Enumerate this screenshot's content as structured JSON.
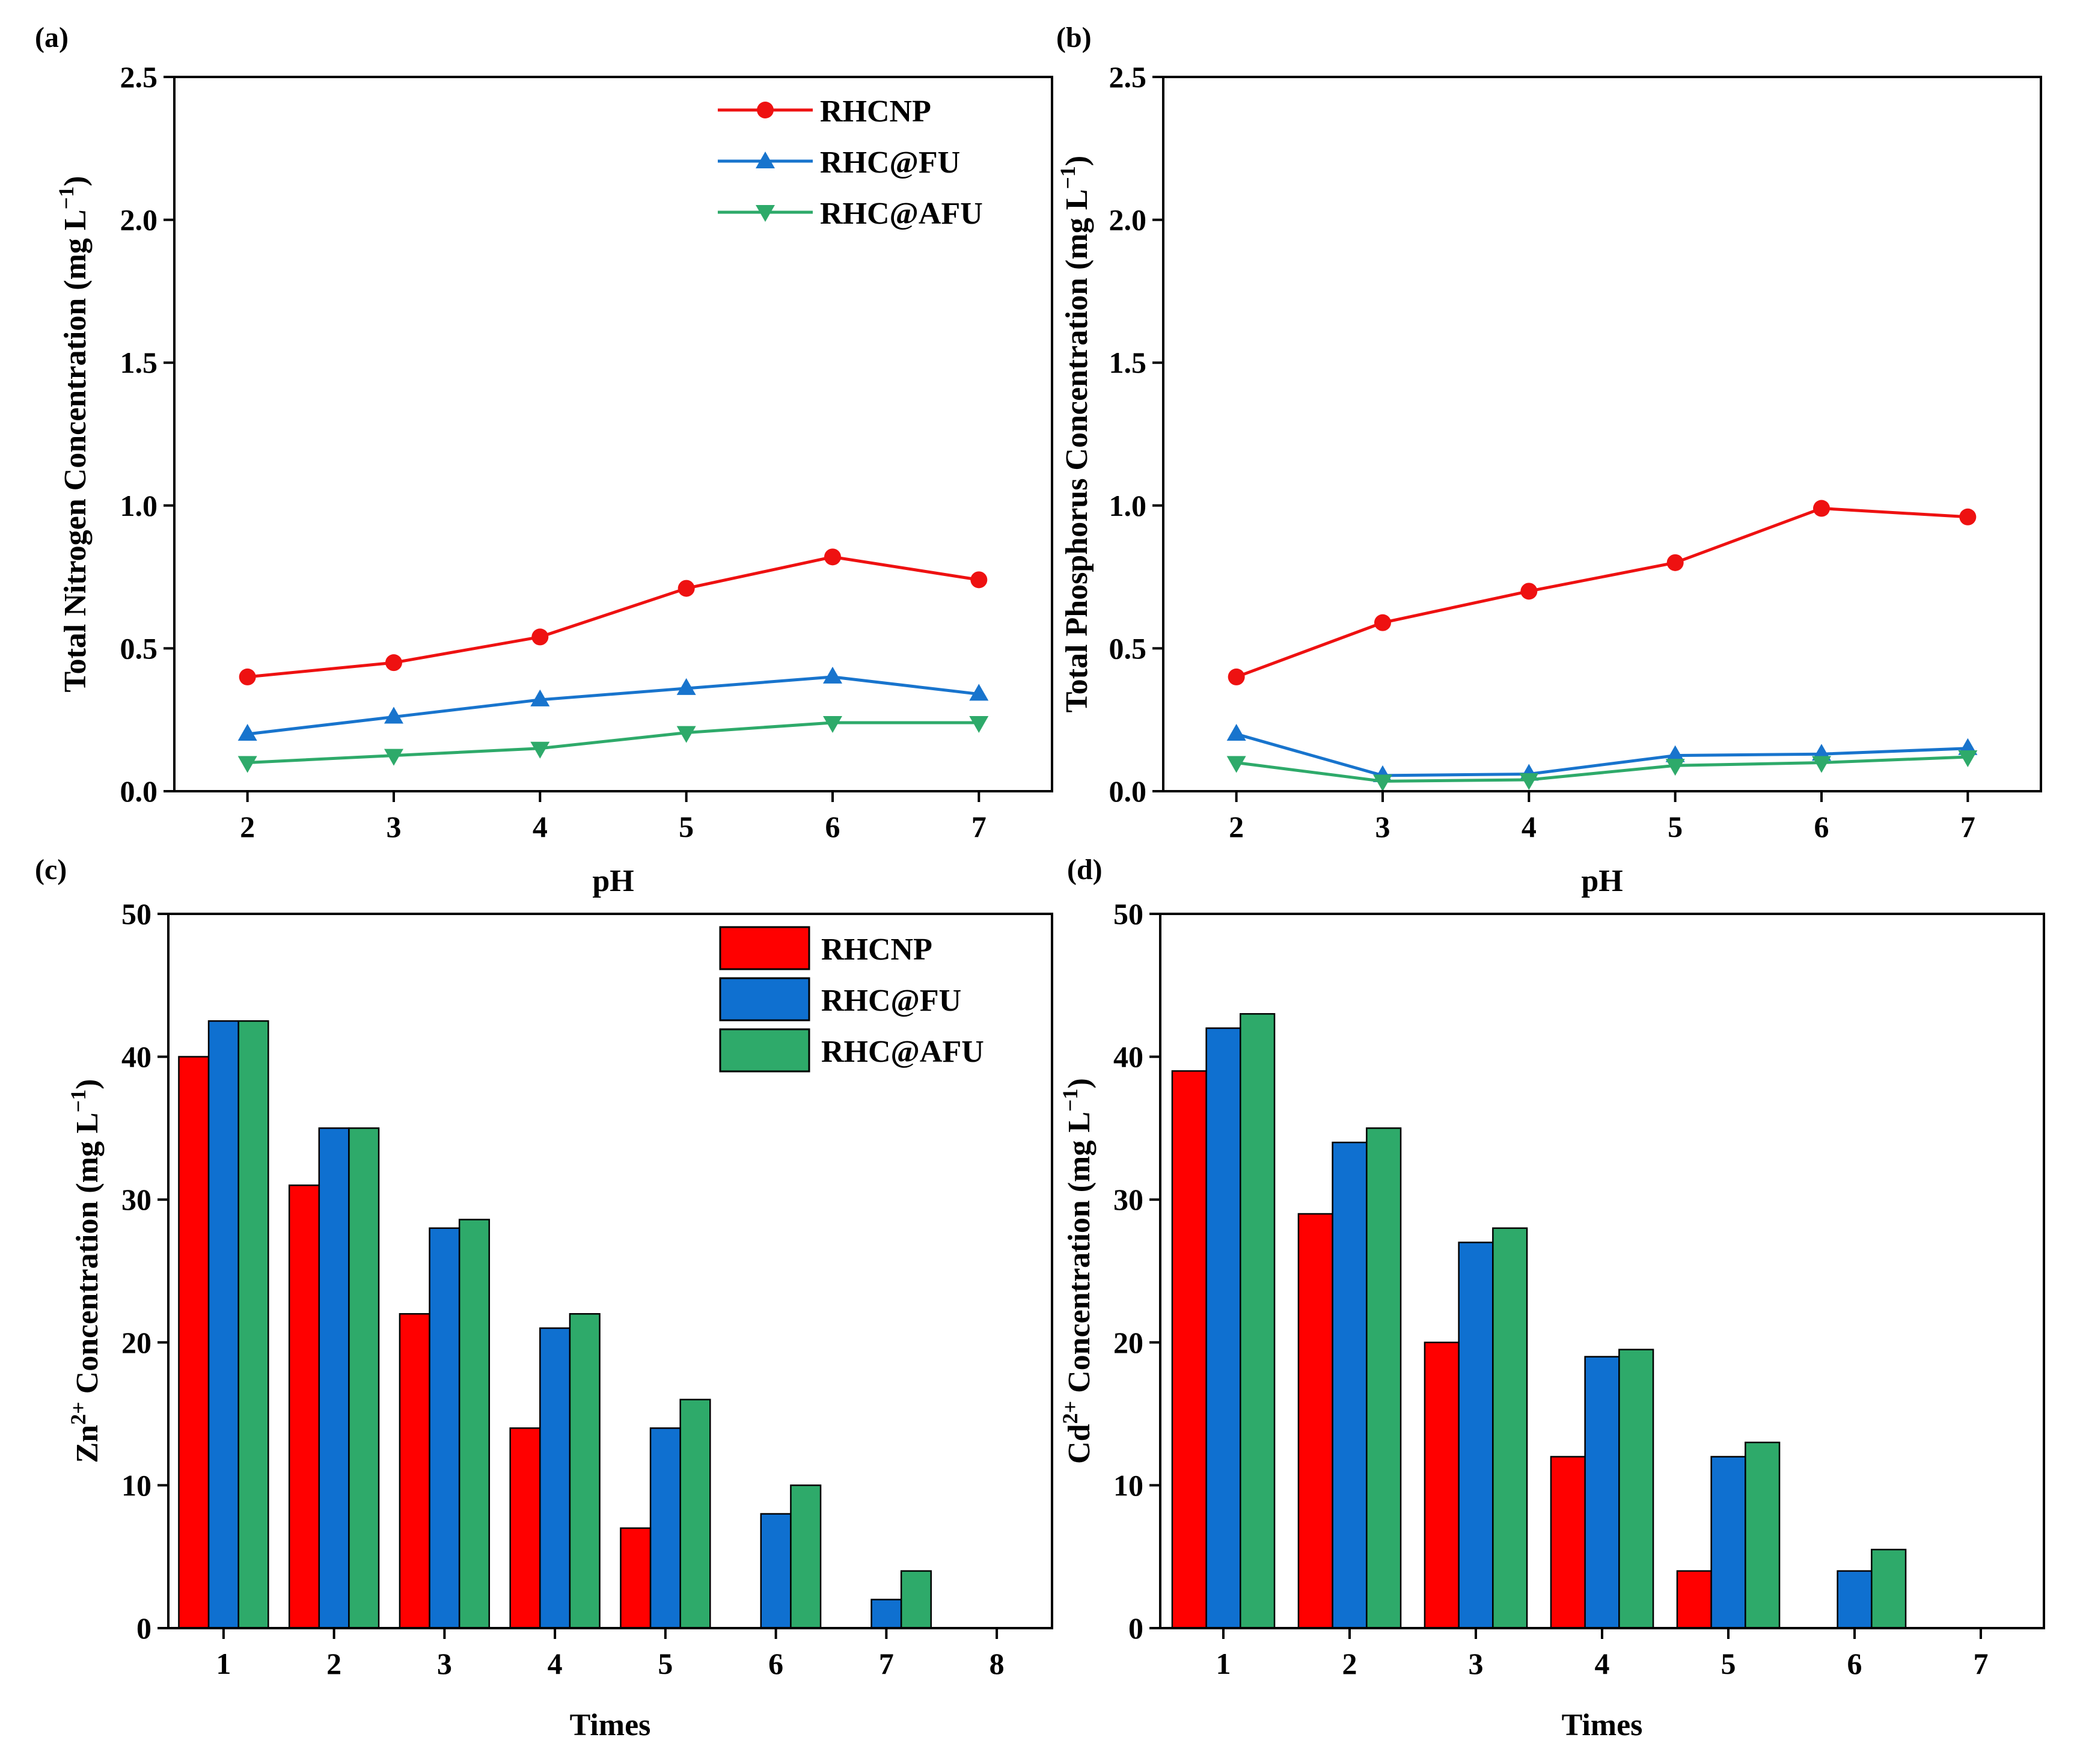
{
  "chart_data": [
    {
      "panel": "(a)",
      "type": "line",
      "xlabel": "pH",
      "ylabel": "Total Nitrogen Concentration (mg L⁻¹)",
      "ylabel_main": "Total Nitrogen Concentration (mg L",
      "ylabel_sup": "−1",
      "ylabel_close": ")",
      "x": [
        2,
        3,
        4,
        5,
        6,
        7
      ],
      "xlim": [
        1.5,
        7.5
      ],
      "ylim": [
        0,
        2.5
      ],
      "yticks": [
        0.0,
        0.5,
        1.0,
        1.5,
        2.0,
        2.5
      ],
      "ytick_labels": [
        "0.0",
        "0.5",
        "1.0",
        "1.5",
        "2.0",
        "2.5"
      ],
      "xtick_labels": [
        "2",
        "3",
        "4",
        "5",
        "6",
        "7"
      ],
      "legend": "top-right",
      "series": [
        {
          "name": "RHCNP",
          "color": "#ee1111",
          "marker": "circle",
          "values": [
            0.4,
            0.45,
            0.54,
            0.71,
            0.82,
            0.74
          ]
        },
        {
          "name": "RHC@FU",
          "color": "#1874cd",
          "marker": "triangle-up",
          "values": [
            0.2,
            0.26,
            0.32,
            0.36,
            0.4,
            0.34
          ]
        },
        {
          "name": "RHC@AFU",
          "color": "#2eaa6a",
          "marker": "triangle-down",
          "values": [
            0.1,
            0.125,
            0.15,
            0.205,
            0.24,
            0.24
          ]
        }
      ]
    },
    {
      "panel": "(b)",
      "type": "line",
      "xlabel": "pH",
      "ylabel": "Total  Phosphorus Concentration (mg L⁻¹)",
      "ylabel_main": "Total  Phosphorus Concentration (mg L",
      "ylabel_sup": "−1",
      "ylabel_close": ")",
      "x": [
        2,
        3,
        4,
        5,
        6,
        7
      ],
      "xlim": [
        1.5,
        7.5
      ],
      "ylim": [
        0,
        2.5
      ],
      "yticks": [
        0.0,
        0.5,
        1.0,
        1.5,
        2.0,
        2.5
      ],
      "ytick_labels": [
        "0.0",
        "0.5",
        "1.0",
        "1.5",
        "2.0",
        "2.5"
      ],
      "xtick_labels": [
        "2",
        "3",
        "4",
        "5",
        "6",
        "7"
      ],
      "series": [
        {
          "name": "RHCNP",
          "color": "#ee1111",
          "marker": "circle",
          "values": [
            0.4,
            0.59,
            0.7,
            0.8,
            0.99,
            0.96
          ]
        },
        {
          "name": "RHC@FU",
          "color": "#1874cd",
          "marker": "triangle-up",
          "values": [
            0.2,
            0.055,
            0.06,
            0.125,
            0.13,
            0.15
          ]
        },
        {
          "name": "RHC@AFU",
          "color": "#2eaa6a",
          "marker": "triangle-down",
          "values": [
            0.1,
            0.035,
            0.04,
            0.09,
            0.1,
            0.12
          ]
        }
      ]
    },
    {
      "panel": "(c)",
      "type": "bar",
      "xlabel": "Times",
      "ylabel": "Zn²⁺ Concentration (mg L⁻¹)",
      "ylabel_ion": "Zn",
      "ylabel_ion_sup": "2+",
      "ylabel_main": " Concentration (mg L",
      "ylabel_sup": "−1",
      "ylabel_close": ")",
      "categories": [
        "1",
        "2",
        "3",
        "4",
        "5",
        "6",
        "7",
        "8"
      ],
      "xlim": [
        0.5,
        8.5
      ],
      "ylim": [
        0,
        50
      ],
      "yticks": [
        0,
        10,
        20,
        30,
        40,
        50
      ],
      "ytick_labels": [
        "0",
        "10",
        "20",
        "30",
        "40",
        "50"
      ],
      "legend": "top-right",
      "series": [
        {
          "name": "RHCNP",
          "color": "#ff0000",
          "values": [
            40,
            31,
            22,
            14,
            7,
            0,
            0,
            0
          ]
        },
        {
          "name": "RHC@FU",
          "color": "#0f70d0",
          "values": [
            42.5,
            35,
            28,
            21,
            14,
            8,
            2,
            0
          ]
        },
        {
          "name": "RHC@AFU",
          "color": "#2eaa6a",
          "values": [
            42.5,
            35,
            28.6,
            22,
            16,
            10,
            4,
            0
          ]
        }
      ]
    },
    {
      "panel": "(d)",
      "type": "bar",
      "xlabel": "Times",
      "ylabel": "Cd²⁺ Concentration (mg L⁻¹)",
      "ylabel_ion": "Cd",
      "ylabel_ion_sup": "2+",
      "ylabel_main": " Concentration (mg L",
      "ylabel_sup": "−1",
      "ylabel_close": ")",
      "categories": [
        "1",
        "2",
        "3",
        "4",
        "5",
        "6",
        "7"
      ],
      "xlim": [
        0.5,
        7.5
      ],
      "ylim": [
        0,
        50
      ],
      "yticks": [
        0,
        10,
        20,
        30,
        40,
        50
      ],
      "ytick_labels": [
        "0",
        "10",
        "20",
        "30",
        "40",
        "50"
      ],
      "series": [
        {
          "name": "RHCNP",
          "color": "#ff0000",
          "values": [
            39,
            29,
            20,
            12,
            4,
            0,
            0
          ]
        },
        {
          "name": "RHC@FU",
          "color": "#0f70d0",
          "values": [
            42,
            34,
            27,
            19,
            12,
            4,
            0
          ]
        },
        {
          "name": "RHC@AFU",
          "color": "#2eaa6a",
          "values": [
            43,
            35,
            28,
            19.5,
            13,
            5.5,
            0
          ]
        }
      ]
    }
  ]
}
